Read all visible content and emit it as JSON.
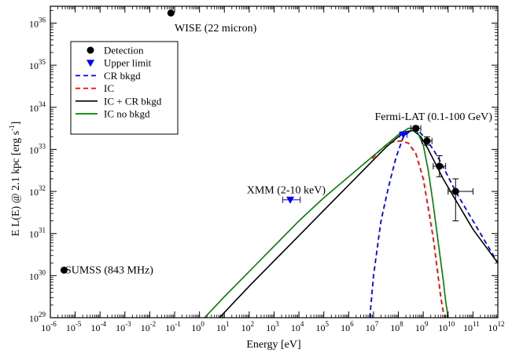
{
  "chart_data": {
    "type": "scatter",
    "title": "",
    "xlabel": "Energy  [eV]",
    "ylabel": "E L(E) @ 2.1 kpc  [erg s⁻¹]",
    "ylabel_main": "E L(E) @ 2.1 kpc  [erg s",
    "ylabel_sup": "-1",
    "ylabel_end": "]",
    "xscale": "log",
    "yscale": "log",
    "xlim_exp": [
      -6,
      12
    ],
    "ylim_exp": [
      29,
      36.4
    ],
    "x_ticks": [
      {
        "base": "10",
        "exp": "-6"
      },
      {
        "base": "10",
        "exp": "-5"
      },
      {
        "base": "10",
        "exp": "-4"
      },
      {
        "base": "10",
        "exp": "-3"
      },
      {
        "base": "10",
        "exp": "-2"
      },
      {
        "base": "10",
        "exp": "-1"
      },
      {
        "base": "10",
        "exp": "0"
      },
      {
        "base": "10",
        "exp": "1"
      },
      {
        "base": "10",
        "exp": "2"
      },
      {
        "base": "10",
        "exp": "3"
      },
      {
        "base": "10",
        "exp": "4"
      },
      {
        "base": "10",
        "exp": "5"
      },
      {
        "base": "10",
        "exp": "6"
      },
      {
        "base": "10",
        "exp": "7"
      },
      {
        "base": "10",
        "exp": "8"
      },
      {
        "base": "10",
        "exp": "9"
      },
      {
        "base": "10",
        "exp": "10"
      },
      {
        "base": "10",
        "exp": "11"
      },
      {
        "base": "10",
        "exp": "12"
      }
    ],
    "y_ticks": [
      {
        "base": "10",
        "exp": "29"
      },
      {
        "base": "10",
        "exp": "30"
      },
      {
        "base": "10",
        "exp": "31"
      },
      {
        "base": "10",
        "exp": "32"
      },
      {
        "base": "10",
        "exp": "33"
      },
      {
        "base": "10",
        "exp": "34"
      },
      {
        "base": "10",
        "exp": "35"
      },
      {
        "base": "10",
        "exp": "36"
      }
    ],
    "grid": false,
    "legend_position": "top-left",
    "legend": [
      {
        "label": "Detection",
        "kind": "marker-circle",
        "color": "#000000"
      },
      {
        "label": "Upper limit",
        "kind": "marker-triangle",
        "color": "#0000ff"
      },
      {
        "label": "CR bkgd",
        "kind": "dashed",
        "color": "#0000ff"
      },
      {
        "label": "IC",
        "kind": "dashed",
        "color": "#ff0000"
      },
      {
        "label": "IC + CR bkgd",
        "kind": "solid",
        "color": "#000000"
      },
      {
        "label": "IC no bkgd",
        "kind": "solid",
        "color": "#008000"
      }
    ],
    "annotations": [
      {
        "text": "WISE (22 micron)",
        "color": "#000000",
        "x": -1.0,
        "y": 35.8
      },
      {
        "text": "Fermi-LAT (0.1-100 GeV)",
        "color": "#000000",
        "x": 7.05,
        "y": 33.7
      },
      {
        "text": "XMM (2-10 keV)",
        "color": "#0000ff",
        "x": 1.9,
        "y": 31.95
      },
      {
        "text": "SUMSS (843 MHz)",
        "color": "#000000",
        "x": -5.4,
        "y": 30.05
      }
    ],
    "detections": [
      {
        "name": "WISE",
        "x": -1.15,
        "y": 36.24
      },
      {
        "name": "SUMSS",
        "x": -5.45,
        "y": 30.13
      },
      {
        "name": "Fermi-1",
        "x": 8.7,
        "y": 33.5,
        "xerr": [
          0.2,
          0.2
        ],
        "yerr": [
          0.05,
          0.05
        ]
      },
      {
        "name": "Fermi-2",
        "x": 9.15,
        "y": 33.2,
        "xerr": [
          0.2,
          0.2
        ],
        "yerr": [
          0.1,
          0.1
        ]
      },
      {
        "name": "Fermi-3",
        "x": 9.65,
        "y": 32.6,
        "xerr": [
          0.25,
          0.25
        ],
        "yerr": [
          0.25,
          0.25
        ]
      },
      {
        "name": "Fermi-4",
        "x": 10.3,
        "y": 32.0,
        "xerr": [
          0.3,
          0.7
        ],
        "yerr": [
          0.7,
          0.3
        ]
      }
    ],
    "upper_limits": [
      {
        "name": "XMM",
        "x": 3.65,
        "y": 31.8,
        "xerr": [
          0.3,
          0.4
        ]
      },
      {
        "name": "Fermi-UL",
        "x": 8.2,
        "y": 33.35,
        "xerr": [
          0.15,
          0.15
        ]
      }
    ],
    "series": [
      {
        "name": "CR bkgd",
        "color": "#0000ff",
        "dash": "6,4",
        "x": [
          6.85,
          7.0,
          7.3,
          7.6,
          7.9,
          8.2,
          8.5,
          8.8,
          9.1,
          9.4,
          9.7,
          10.0,
          10.3,
          10.6,
          11.0,
          11.5,
          12.0
        ],
        "y": [
          29.0,
          30.0,
          31.3,
          32.1,
          32.8,
          33.3,
          33.45,
          33.45,
          33.25,
          33.0,
          32.7,
          32.35,
          32.0,
          31.7,
          31.3,
          30.8,
          30.3
        ]
      },
      {
        "name": "IC",
        "color": "#ff0000",
        "dash": "6,4",
        "x": [
          6.95,
          7.2,
          7.5,
          7.8,
          8.1,
          8.4,
          8.7,
          9.0,
          9.2,
          9.4,
          9.55,
          9.7,
          9.8,
          9.88
        ],
        "y": [
          32.78,
          32.95,
          33.1,
          33.18,
          33.2,
          33.15,
          32.9,
          32.3,
          31.6,
          30.9,
          30.2,
          29.5,
          29.15,
          29.0
        ]
      },
      {
        "name": "IC + CR bkgd",
        "color": "#000000",
        "dash": "",
        "x": [
          0.8,
          2.0,
          3.0,
          4.0,
          5.0,
          6.0,
          6.5,
          7.0,
          7.5,
          8.0,
          8.3,
          8.6,
          8.9,
          9.2,
          9.5,
          9.8,
          10.1,
          10.4,
          10.7,
          11.0,
          11.5,
          12.0
        ],
        "y": [
          29.0,
          29.75,
          30.35,
          30.95,
          31.55,
          32.15,
          32.45,
          32.75,
          33.05,
          33.3,
          33.42,
          33.45,
          33.3,
          33.0,
          32.65,
          32.3,
          32.0,
          31.7,
          31.4,
          31.1,
          30.7,
          30.3
        ]
      },
      {
        "name": "IC no bkgd",
        "color": "#008000",
        "dash": "",
        "x": [
          0.2,
          1.0,
          2.0,
          3.0,
          4.0,
          5.0,
          6.0,
          7.0,
          7.5,
          8.0,
          8.4,
          8.7,
          9.0,
          9.2,
          9.4,
          9.6,
          9.8,
          9.9,
          10.0
        ],
        "y": [
          29.0,
          29.5,
          30.1,
          30.7,
          31.3,
          31.85,
          32.35,
          32.85,
          33.1,
          33.35,
          33.5,
          33.5,
          33.1,
          32.5,
          31.7,
          30.8,
          29.9,
          29.4,
          29.0
        ]
      }
    ]
  }
}
